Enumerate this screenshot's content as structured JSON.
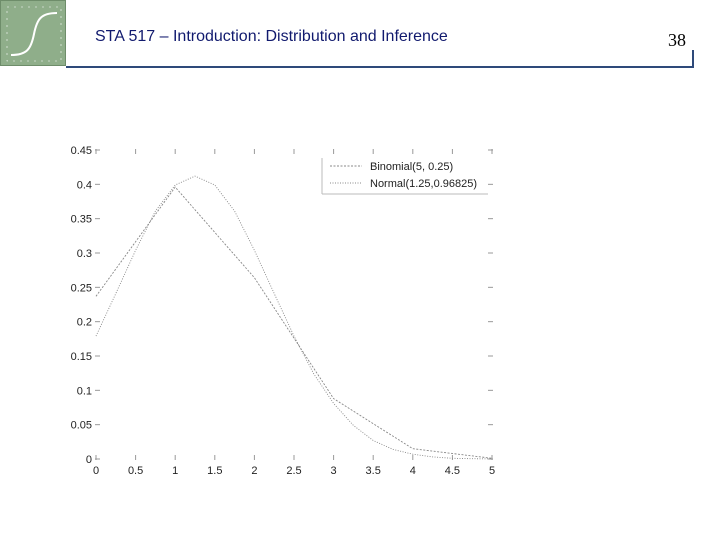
{
  "header": {
    "title": "STA 517 – Introduction: Distribution and Inference",
    "page_number": "38"
  },
  "colors": {
    "title": "#111a6e",
    "rule": "#2e4a7a",
    "logo_bg": "#8fae8a",
    "series": "#888888"
  },
  "logo": {
    "icon": "sigmoid-curve-icon"
  },
  "chart_data": {
    "type": "line",
    "xlim": [
      0,
      5
    ],
    "ylim": [
      0,
      0.45
    ],
    "xticks": [
      0,
      0.5,
      1,
      1.5,
      2,
      2.5,
      3,
      3.5,
      4,
      4.5,
      5
    ],
    "xtick_labels": [
      "0",
      "0.5",
      "1",
      "1.5",
      "2",
      "2.5",
      "3",
      "3.5",
      "4",
      "4.5",
      "5"
    ],
    "yticks": [
      0,
      0.05,
      0.1,
      0.15,
      0.2,
      0.25,
      0.3,
      0.35,
      0.4,
      0.45
    ],
    "ytick_labels": [
      "0",
      "0.05",
      "0.1",
      "0.15",
      "0.2",
      "0.25",
      "0.3",
      "0.35",
      "0.4",
      "0.45"
    ],
    "legend_position": "top-right",
    "grid": false,
    "series": [
      {
        "name": "Binomial(5, 0.25)",
        "x": [
          0,
          1,
          2,
          3,
          4,
          5
        ],
        "y": [
          0.237,
          0.396,
          0.264,
          0.088,
          0.015,
          0.001
        ]
      },
      {
        "name": "Normal(1.25,0.96825)",
        "x": [
          0,
          0.25,
          0.5,
          0.75,
          1,
          1.25,
          1.5,
          1.75,
          2,
          2.25,
          2.5,
          2.75,
          3,
          3.25,
          3.5,
          3.75,
          4,
          4.25,
          4.5,
          4.75,
          5
        ],
        "y": [
          0.179,
          0.241,
          0.304,
          0.361,
          0.399,
          0.412,
          0.399,
          0.361,
          0.304,
          0.241,
          0.179,
          0.124,
          0.081,
          0.049,
          0.027,
          0.014,
          0.007,
          0.003,
          0.001,
          0.0005,
          0.0002
        ]
      }
    ]
  }
}
